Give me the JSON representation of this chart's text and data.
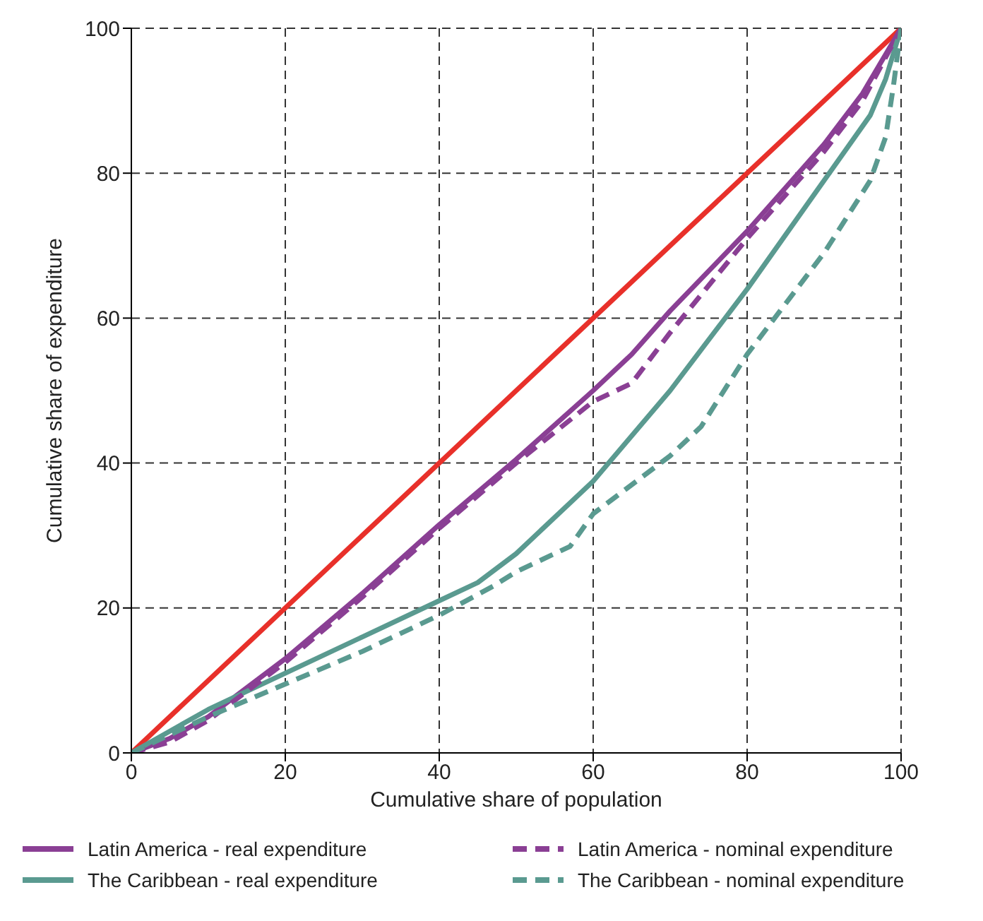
{
  "chart_data": {
    "type": "line",
    "xlabel": "Cumulative share of population",
    "ylabel": "Cumulative share of expenditure",
    "xlim": [
      0,
      100
    ],
    "ylim": [
      0,
      100
    ],
    "xticks": [
      0,
      20,
      40,
      60,
      80,
      100
    ],
    "yticks": [
      0,
      20,
      40,
      60,
      80,
      100
    ],
    "grid": true,
    "legend": "bottom",
    "marker": "none",
    "series": [
      {
        "color": "#e8302a",
        "line_style": "solid",
        "x": [
          0,
          100
        ],
        "values": [
          0,
          100
        ]
      },
      {
        "name": "Latin America - real expenditure",
        "color": "#8a3f94",
        "line_style": "solid",
        "x": [
          0,
          5,
          10,
          20,
          30,
          40,
          50,
          60,
          65,
          70,
          80,
          90,
          95,
          100
        ],
        "values": [
          0,
          2,
          5,
          13,
          22,
          31.5,
          40.5,
          50,
          55,
          61,
          72,
          84,
          91,
          100
        ]
      },
      {
        "name": "The Caribbean - real expenditure",
        "color": "#5a9a90",
        "line_style": "solid",
        "x": [
          0,
          5,
          10,
          20,
          30,
          40,
          45,
          50,
          60,
          70,
          80,
          90,
          96,
          98,
          100
        ],
        "values": [
          0,
          3,
          6,
          11,
          16,
          21,
          23.5,
          27.5,
          37.5,
          50,
          64,
          79,
          88,
          93,
          100
        ]
      },
      {
        "name": "Latin America - nominal expenditure",
        "color": "#8a3f94",
        "line_style": "dashed",
        "x": [
          0,
          5,
          10,
          20,
          30,
          40,
          50,
          60,
          65,
          70,
          80,
          90,
          95,
          100
        ],
        "values": [
          0,
          1.5,
          4.5,
          12.5,
          21.5,
          31,
          40,
          48.5,
          51,
          58,
          71,
          83,
          90,
          100
        ]
      },
      {
        "name": "The Caribbean - nominal expenditure",
        "color": "#5a9a90",
        "line_style": "dashed",
        "x": [
          0,
          10,
          20,
          30,
          40,
          47,
          50,
          57,
          60,
          70,
          74,
          80,
          90,
          96,
          98,
          99,
          100
        ],
        "values": [
          0,
          5,
          9.5,
          14,
          19,
          23,
          25,
          28.5,
          33,
          41,
          45,
          55,
          69,
          79,
          85,
          92,
          100
        ]
      }
    ]
  }
}
